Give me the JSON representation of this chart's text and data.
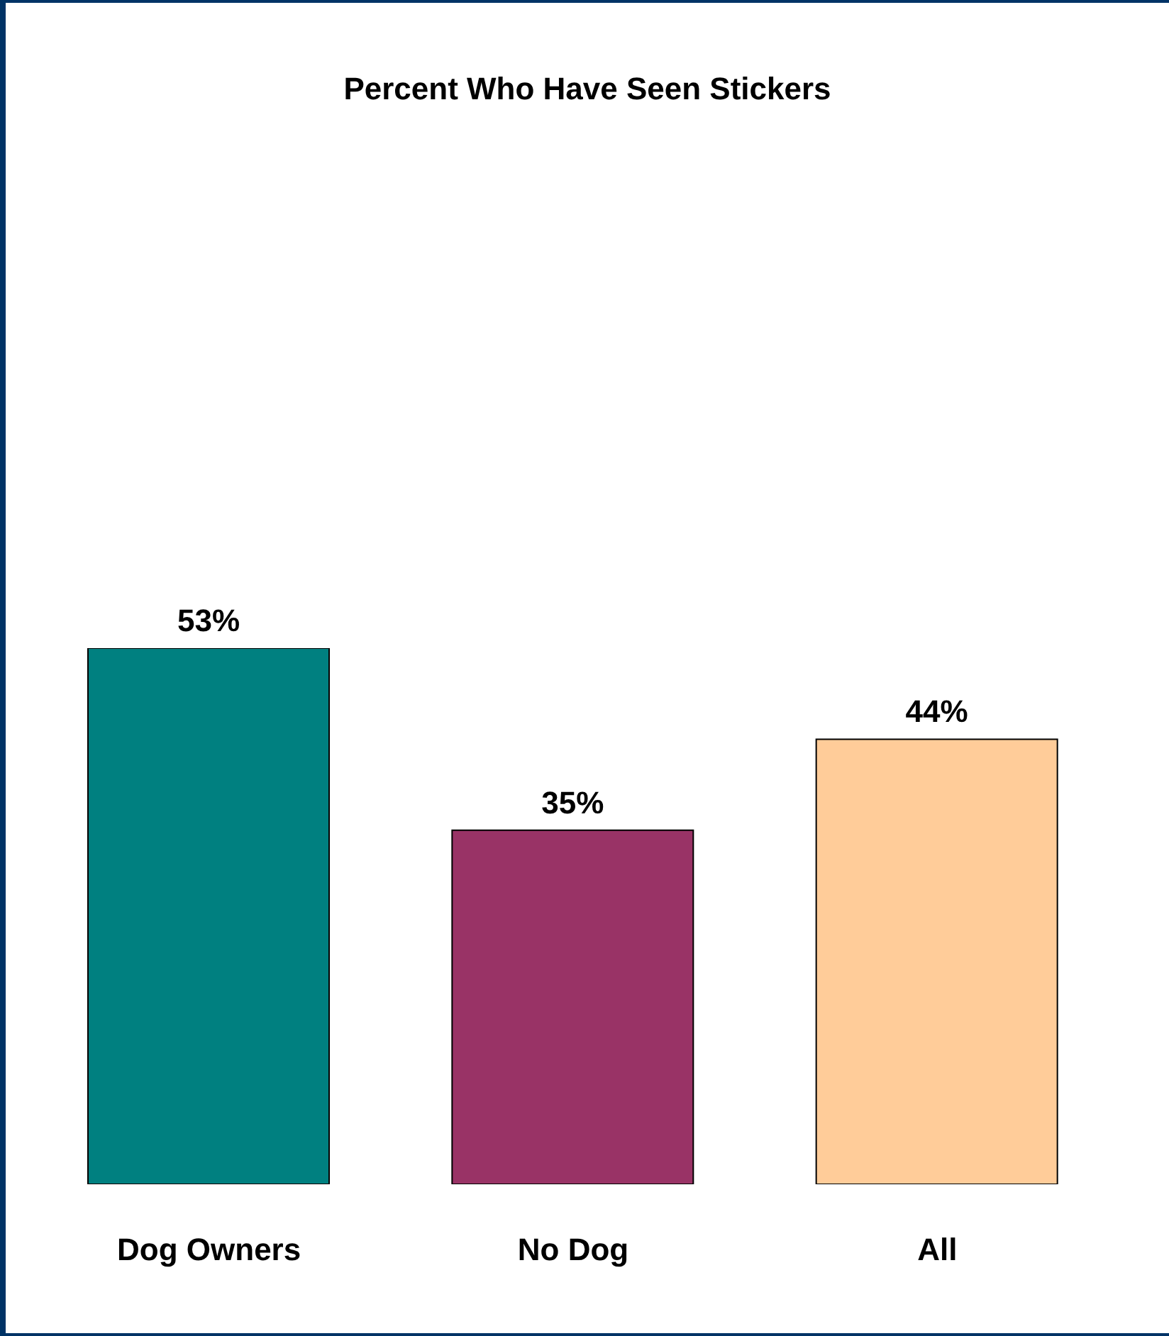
{
  "chart_data": {
    "type": "bar",
    "title": "Percent Who Have Seen Stickers",
    "categories": [
      "Dog Owners",
      "No Dog",
      "All"
    ],
    "values": [
      53,
      35,
      44
    ],
    "colors": [
      "#008080",
      "#993366",
      "#ffcc99"
    ],
    "value_labels": [
      "53%",
      "35%",
      "44%"
    ],
    "grid": false
  }
}
